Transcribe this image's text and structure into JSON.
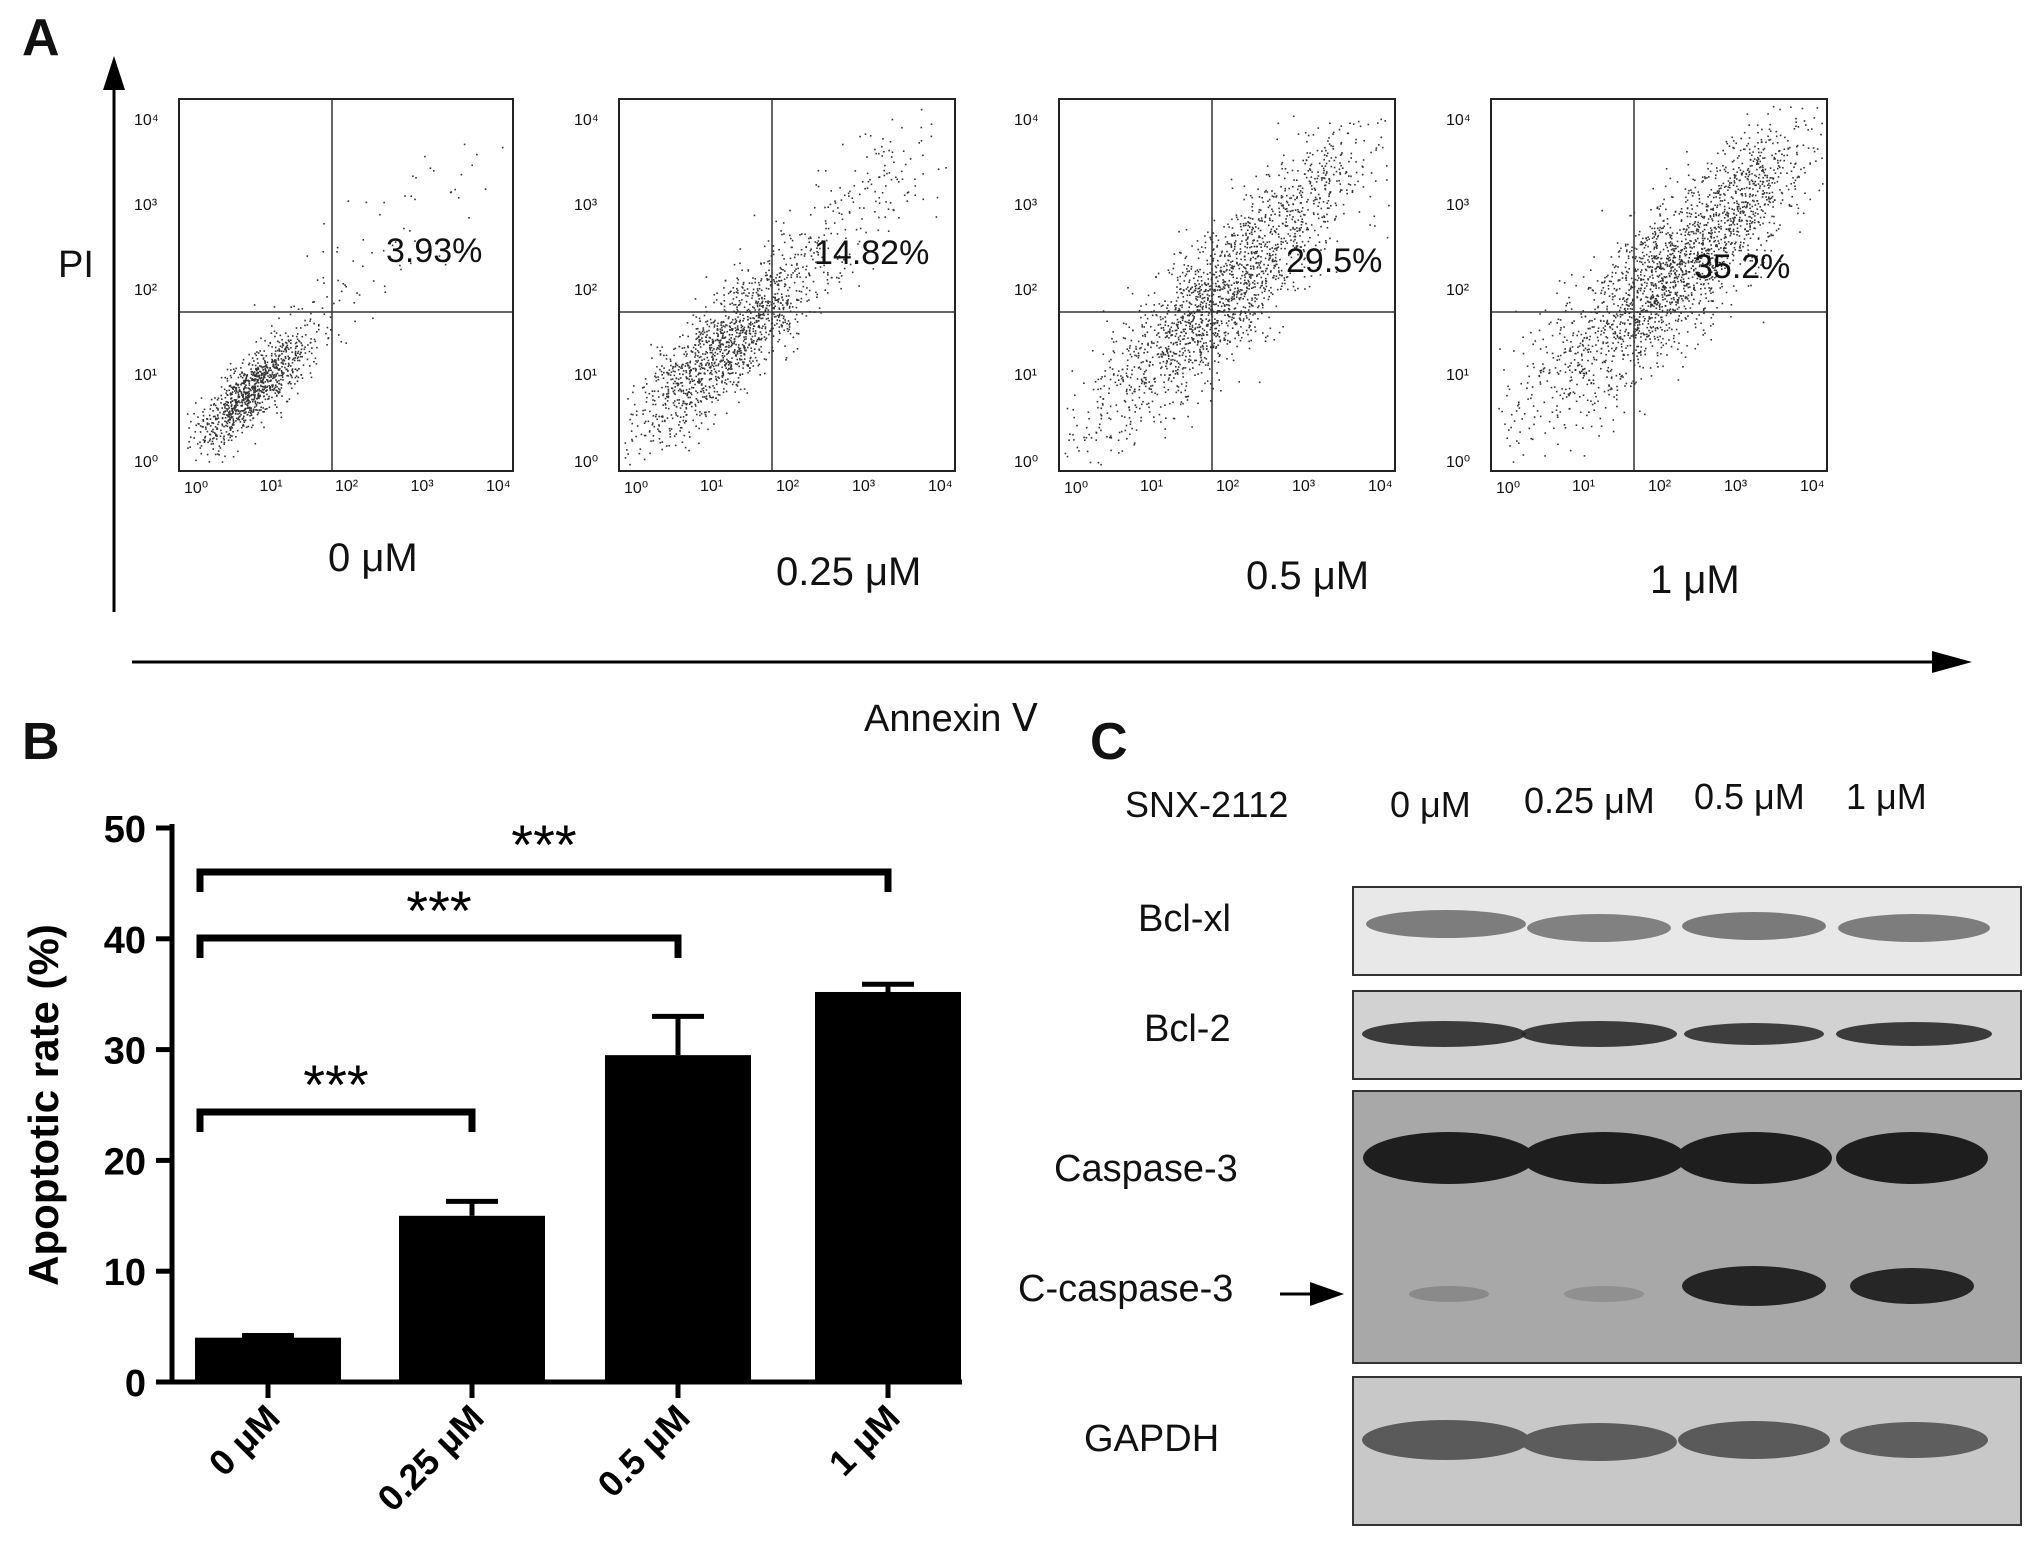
{
  "panels": {
    "a": "A",
    "b": "B",
    "c": "C"
  },
  "panel_a": {
    "y_axis_label": "PI",
    "x_axis_label": "Annexin Ⅴ",
    "tick_labels": [
      "10⁰",
      "10¹",
      "10²",
      "10³",
      "10⁴"
    ],
    "plots": [
      {
        "concentration": "0 μM",
        "percent": "3.93%"
      },
      {
        "concentration": "0.25 μM",
        "percent": "14.82%"
      },
      {
        "concentration": "0.5 μM",
        "percent": "29.5%"
      },
      {
        "concentration": "1 μM",
        "percent": "35.2%"
      }
    ]
  },
  "chart_data": {
    "type": "bar",
    "categories": [
      "0 μM",
      "0.25 μM",
      "0.5 μM",
      "1 μM"
    ],
    "values": [
      4.0,
      15.0,
      29.5,
      35.2
    ],
    "errors": [
      0.2,
      1.3,
      3.5,
      0.7
    ],
    "ylabel": "Apoptotic rate (%)",
    "xlabel": "",
    "ylim": [
      0,
      50
    ],
    "yticks": [
      "0",
      "10",
      "20",
      "30",
      "40",
      "50"
    ],
    "significance": [
      {
        "from": 0,
        "to": 1,
        "label": "***"
      },
      {
        "from": 0,
        "to": 2,
        "label": "***"
      },
      {
        "from": 0,
        "to": 3,
        "label": "***"
      }
    ],
    "colors": {
      "bar": "#000000"
    },
    "grid": false
  },
  "panel_c": {
    "treatment_label": "SNX-2112",
    "lanes": [
      "0 μM",
      "0.25 μM",
      "0.5 μM",
      "1 μM"
    ],
    "blots": [
      "Bcl-xl",
      "Bcl-2",
      "Caspase-3",
      "C-caspase-3",
      "GAPDH"
    ]
  }
}
